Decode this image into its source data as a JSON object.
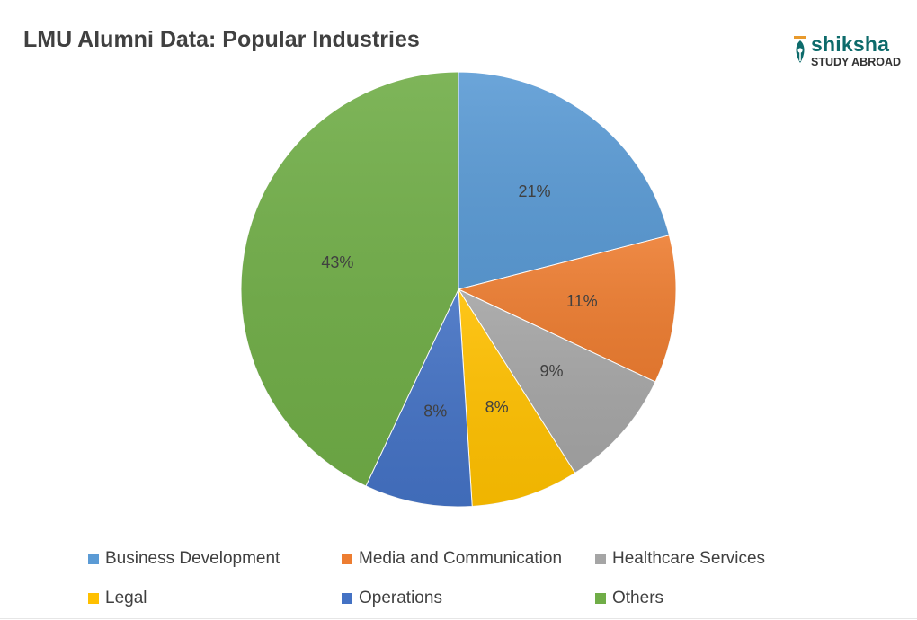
{
  "chart_data": {
    "type": "pie",
    "title": "LMU Alumni Data: Popular Industries",
    "categories": [
      "Business Development",
      "Media and Communication",
      "Healthcare Services",
      "Legal",
      "Operations",
      "Others"
    ],
    "values": [
      21,
      11,
      9,
      8,
      8,
      43
    ],
    "labels": [
      "21%",
      "11%",
      "9%",
      "8%",
      "8%",
      "43%"
    ],
    "colors": [
      "#5b9bd5",
      "#ed7d31",
      "#a5a5a5",
      "#ffc000",
      "#4472c4",
      "#70ad47"
    ],
    "legend_position": "bottom",
    "start_angle": "12 o'clock, clockwise"
  },
  "brand": {
    "name": "shiksha",
    "subtitle": "STUDY ABROAD",
    "icon": "pen-nib-icon"
  }
}
